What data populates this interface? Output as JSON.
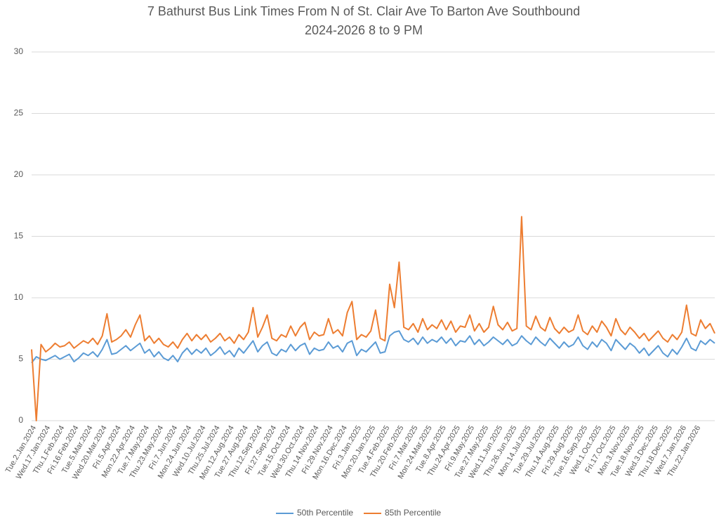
{
  "chart_data": {
    "type": "line",
    "title": "7 Bathurst Bus Link Times From N of St. Clair Ave To Barton Ave Southbound",
    "subtitle": "2024-2026 8 to 9 PM",
    "categories": [
      "Tue.2.Jan.2024",
      null,
      null,
      "Wed.17.Jan.2024",
      null,
      null,
      "Thu.1.Feb.2024",
      null,
      null,
      "Fri.16.Feb.2024",
      null,
      null,
      "Tue.5.Mar.2024",
      null,
      null,
      "Wed.20.Mar.2024",
      null,
      null,
      "Fri.5.Apr.2024",
      null,
      null,
      "Mon.22.Apr.2024",
      null,
      null,
      "Tue.7.May.2024",
      null,
      null,
      "Thu.23.May.2024",
      null,
      null,
      "Fri.7.Jun.2024",
      null,
      null,
      "Mon.24.Jun.2024",
      null,
      null,
      "Wed.10.Jul.2024",
      null,
      null,
      "Thu.25.Jul.2024",
      null,
      null,
      "Mon.12.Aug.2024",
      null,
      null,
      "Tue.27.Aug.2024",
      null,
      null,
      "Thu.12.Sep.2024",
      null,
      null,
      "Fri.27.Sep.2024",
      null,
      null,
      "Tue.15.Oct.2024",
      null,
      null,
      "Wed.30.Oct.2024",
      null,
      null,
      "Thu.14.Nov.2024",
      null,
      null,
      "Fri.29.Nov.2024",
      null,
      null,
      "Mon.16.Dec.2024",
      null,
      null,
      "Fri.3.Jan.2025",
      null,
      null,
      "Mon.20.Jan.2025",
      null,
      null,
      "Tue.4.Feb.2025",
      null,
      null,
      "Thu.20.Feb.2025",
      null,
      null,
      "Fri.7.Mar.2025",
      null,
      null,
      "Mon.24.Mar.2025",
      null,
      null,
      "Tue.8.Apr.2025",
      null,
      null,
      "Thu.24.Apr.2025",
      null,
      null,
      "Fri.9.May.2025",
      null,
      null,
      "Tue.27.May.2025",
      null,
      null,
      "Wed.11.Jun.2025",
      null,
      null,
      "Thu.26.Jun.2025",
      null,
      null,
      "Mon.14.Jul.2025",
      null,
      null,
      "Tue.29.Jul.2025",
      null,
      null,
      "Thu.14.Aug.2025",
      null,
      null,
      "Fri.29.Aug.2025",
      null,
      null,
      "Tue.16.Sep.2025",
      null,
      null,
      "Wed.1.Oct.2025",
      null,
      null,
      "Fri.17.Oct.2025",
      null,
      null,
      "Mon.3.Nov.2025",
      null,
      null,
      "Tue.18.Nov.2025",
      null,
      null,
      "Wed.3.Dec.2025",
      null,
      null,
      "Thu.18.Dec.2025",
      null,
      null,
      "Wed.7.Jan.2026",
      null,
      null,
      "Thu.22.Jan.2026",
      null,
      null,
      null,
      null
    ],
    "series": [
      {
        "name": "50th Percentile",
        "color": "#5b9bd5",
        "values": [
          4.7,
          5.2,
          5.0,
          4.9,
          5.1,
          5.3,
          5.0,
          5.2,
          5.4,
          4.8,
          5.1,
          5.5,
          5.3,
          5.6,
          5.2,
          5.8,
          6.6,
          5.4,
          5.5,
          5.8,
          6.1,
          5.7,
          6.0,
          6.3,
          5.5,
          5.8,
          5.2,
          5.6,
          5.1,
          4.9,
          5.3,
          4.8,
          5.5,
          5.9,
          5.4,
          5.8,
          5.5,
          5.9,
          5.3,
          5.6,
          6.0,
          5.4,
          5.7,
          5.2,
          5.9,
          5.5,
          6.0,
          6.5,
          5.6,
          6.1,
          6.4,
          5.5,
          5.3,
          5.8,
          5.6,
          6.2,
          5.7,
          6.1,
          6.3,
          5.4,
          5.9,
          5.7,
          5.8,
          6.4,
          5.9,
          6.1,
          5.6,
          6.3,
          6.5,
          5.3,
          5.8,
          5.6,
          6.0,
          6.4,
          5.5,
          5.6,
          6.9,
          7.2,
          7.3,
          6.6,
          6.4,
          6.7,
          6.2,
          6.8,
          6.3,
          6.6,
          6.4,
          6.8,
          6.3,
          6.7,
          6.1,
          6.5,
          6.4,
          6.9,
          6.2,
          6.6,
          6.1,
          6.4,
          6.8,
          6.5,
          6.2,
          6.6,
          6.1,
          6.3,
          6.9,
          6.5,
          6.2,
          6.8,
          6.4,
          6.1,
          6.7,
          6.3,
          5.9,
          6.4,
          6.0,
          6.2,
          6.8,
          6.1,
          5.8,
          6.4,
          6.0,
          6.6,
          6.3,
          5.7,
          6.6,
          6.2,
          5.8,
          6.3,
          6.0,
          5.5,
          5.9,
          5.3,
          5.7,
          6.1,
          5.5,
          5.2,
          5.8,
          5.4,
          6.0,
          6.7,
          5.9,
          5.7,
          6.5,
          6.2,
          6.6,
          6.3
        ]
      },
      {
        "name": "85th Percentile",
        "color": "#ed7d31",
        "values": [
          5.8,
          0,
          6.2,
          5.6,
          5.9,
          6.3,
          6.0,
          6.1,
          6.4,
          5.9,
          6.2,
          6.5,
          6.3,
          6.7,
          6.2,
          6.9,
          8.7,
          6.4,
          6.6,
          6.9,
          7.4,
          6.8,
          7.8,
          8.6,
          6.5,
          6.9,
          6.3,
          6.7,
          6.2,
          6.0,
          6.4,
          5.9,
          6.6,
          7.1,
          6.5,
          7.0,
          6.6,
          7.0,
          6.4,
          6.7,
          7.1,
          6.5,
          6.8,
          6.3,
          7.0,
          6.6,
          7.2,
          9.2,
          6.8,
          7.6,
          8.6,
          6.7,
          6.5,
          7.0,
          6.8,
          7.7,
          6.9,
          7.6,
          8.0,
          6.6,
          7.2,
          6.9,
          7.0,
          8.3,
          7.1,
          7.4,
          6.9,
          8.8,
          9.7,
          6.6,
          7.0,
          6.8,
          7.3,
          9.0,
          6.7,
          6.5,
          11.1,
          9.2,
          12.9,
          7.6,
          7.4,
          7.9,
          7.2,
          8.3,
          7.4,
          7.8,
          7.5,
          8.2,
          7.4,
          8.1,
          7.2,
          7.7,
          7.6,
          8.6,
          7.3,
          7.9,
          7.2,
          7.6,
          9.3,
          7.8,
          7.4,
          8.0,
          7.3,
          7.5,
          16.6,
          7.7,
          7.4,
          8.5,
          7.6,
          7.3,
          8.4,
          7.5,
          7.1,
          7.6,
          7.2,
          7.4,
          8.6,
          7.3,
          7.0,
          7.7,
          7.2,
          8.1,
          7.6,
          6.9,
          8.3,
          7.4,
          7.0,
          7.6,
          7.2,
          6.7,
          7.1,
          6.5,
          6.9,
          7.3,
          6.7,
          6.4,
          7.0,
          6.6,
          7.2,
          9.4,
          7.1,
          6.9,
          8.2,
          7.5,
          7.9,
          7.1
        ]
      }
    ],
    "ylim": [
      0,
      30
    ],
    "yticks": [
      0,
      5,
      10,
      15,
      20,
      25,
      30
    ],
    "grid": true,
    "legend": "bottom"
  }
}
